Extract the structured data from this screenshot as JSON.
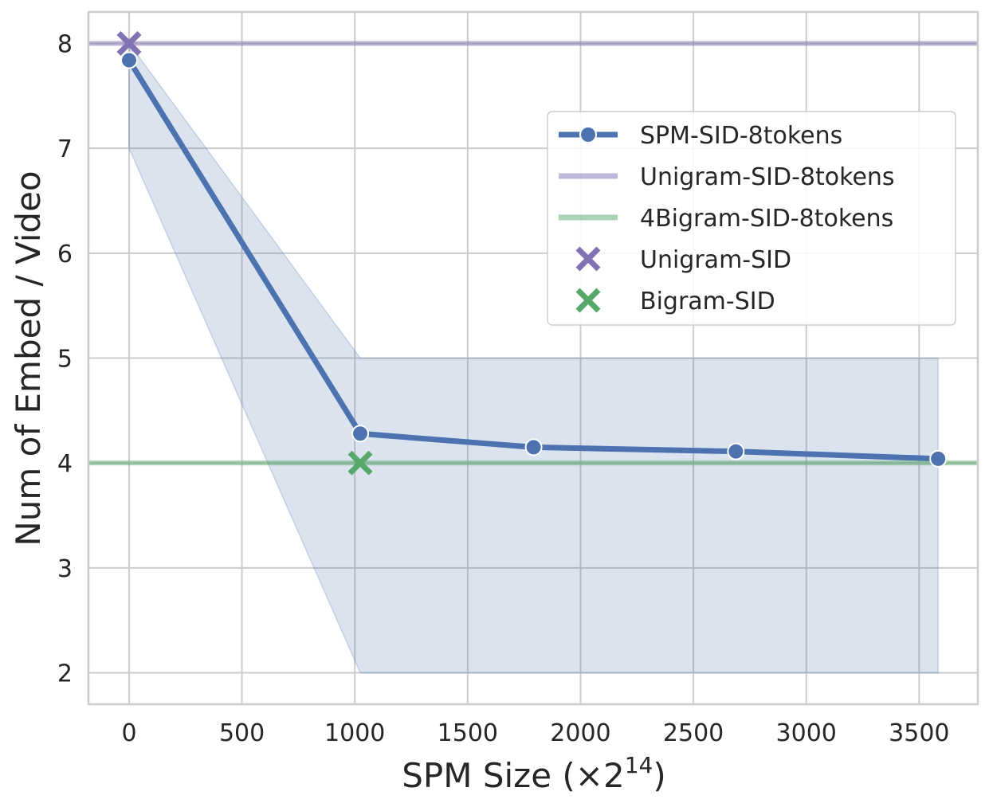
{
  "chart_data": {
    "type": "line",
    "xlabel": "SPM Size (×2",
    "xlabel_sup": "14",
    "xlabel_close": ")",
    "ylabel": "Num of Embed / Video",
    "xlim": [
      -180,
      3760
    ],
    "ylim": [
      1.7,
      8.3
    ],
    "x_ticks": [
      0,
      500,
      1000,
      1500,
      2000,
      2500,
      3000,
      3500
    ],
    "y_ticks": [
      2,
      3,
      4,
      5,
      6,
      7,
      8
    ],
    "grid": true,
    "legend_position": "upper right",
    "series": [
      {
        "name": "SPM-SID-8tokens",
        "kind": "line-marker",
        "color": "#4c72b0",
        "x": [
          0,
          1024,
          1792,
          2688,
          3584
        ],
        "y": [
          7.84,
          4.28,
          4.15,
          4.11,
          4.04
        ],
        "band_x": [
          0,
          1024,
          3584
        ],
        "band_low": [
          7.0,
          2.0,
          2.0
        ],
        "band_high": [
          8.0,
          5.0,
          5.0
        ]
      },
      {
        "name": "Unigram-SID-8tokens",
        "kind": "hline",
        "color": "#8172b3",
        "y": 8
      },
      {
        "name": "4Bigram-SID-8tokens",
        "kind": "hline",
        "color": "#55a868",
        "y": 4
      },
      {
        "name": "Unigram-SID",
        "kind": "x-marker",
        "color": "#8172b3",
        "x": 0,
        "y": 8
      },
      {
        "name": "Bigram-SID",
        "kind": "x-marker",
        "color": "#55a868",
        "x": 1024,
        "y": 4
      }
    ]
  }
}
